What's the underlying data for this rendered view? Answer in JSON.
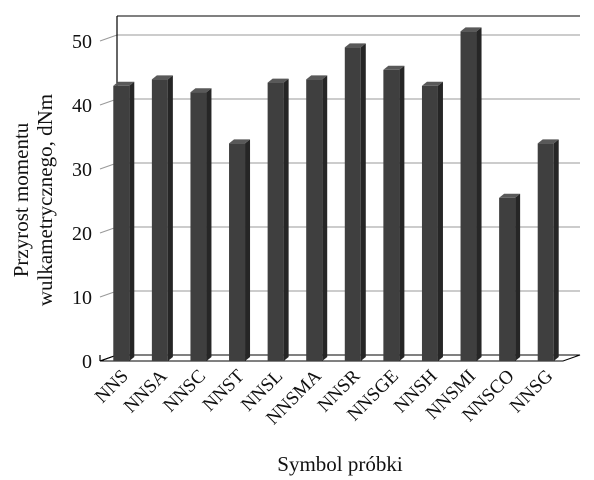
{
  "chart_data": {
    "type": "bar",
    "title": "",
    "xlabel": "Symbol próbki",
    "ylabel_lines": [
      "Przyrost momentu",
      "wulkametrycznego, dNm"
    ],
    "categories": [
      "NNS",
      "NNSA",
      "NNSC",
      "NNST",
      "NNSL",
      "NNSMA",
      "NNSR",
      "NNSGE",
      "NNSH",
      "NNSMI",
      "NNSCO",
      "NNSG"
    ],
    "values": [
      43,
      44,
      42,
      34,
      43.5,
      44,
      49,
      45.5,
      43,
      51.5,
      25.5,
      34
    ],
    "ylim": [
      0,
      50
    ],
    "yticks": [
      "0",
      "10",
      "20",
      "30",
      "40",
      "50"
    ],
    "grid": true,
    "legend": "none",
    "colors": {
      "bar_front": "#3f3f3f",
      "bar_side": "#262626",
      "bar_top": "#595959",
      "grid": "#999999"
    }
  }
}
